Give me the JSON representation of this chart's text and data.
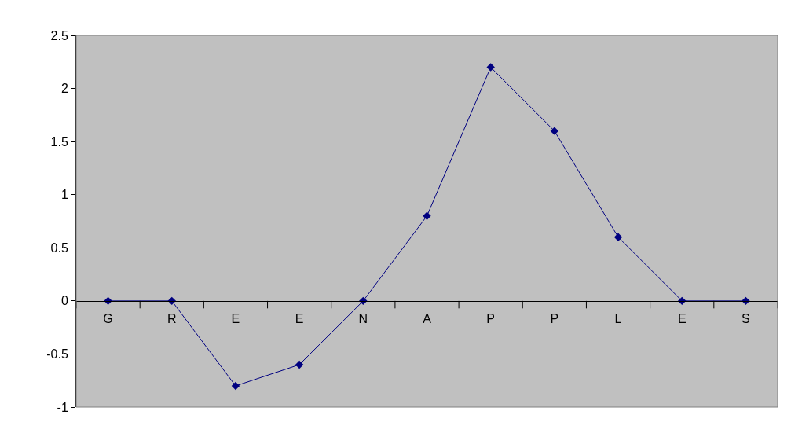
{
  "chart_data": {
    "type": "line",
    "categories": [
      "G",
      "R",
      "E",
      "E",
      "N",
      "A",
      "P",
      "P",
      "L",
      "E",
      "S"
    ],
    "series": [
      {
        "color": "#000080",
        "values": [
          0,
          0,
          -0.8,
          -0.6,
          0,
          0.8,
          2.2,
          1.6,
          0.6,
          0,
          0
        ]
      }
    ],
    "ylim": [
      -1,
      2.5
    ],
    "yticks": [
      -1,
      -0.5,
      0,
      0.5,
      1,
      1.5,
      2,
      2.5
    ],
    "grid": false,
    "legend": false,
    "marker": "diamond",
    "line_style": "solid"
  }
}
